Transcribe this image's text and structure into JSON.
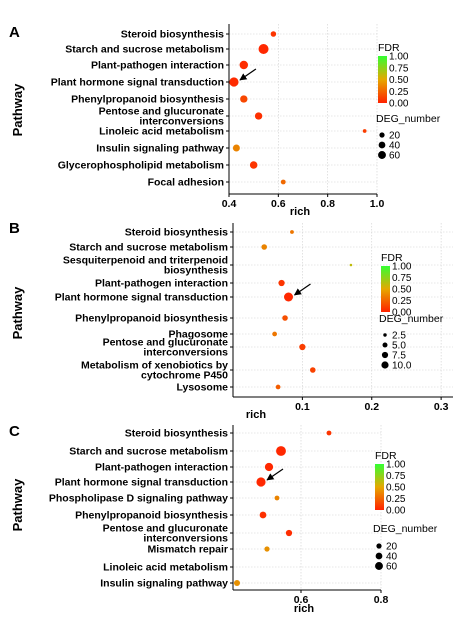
{
  "chart_data": [
    {
      "type": "scatter",
      "panel_label": "A",
      "xlabel": "rich",
      "ylabel": "Pathway",
      "xlim": [
        0.4,
        1.0
      ],
      "xticks": [
        "0.4",
        "0.6",
        "0.8",
        "1.0"
      ],
      "grid": true,
      "legend_position": "right",
      "size_legend_title": "DEG_number",
      "size_legend_values": [
        "20",
        "40",
        "60"
      ],
      "color_legend_title": "FDR",
      "color_legend_values": [
        "1.00",
        "0.75",
        "0.50",
        "0.25",
        "0.00"
      ],
      "categories": [
        "Steroid biosynthesis",
        "Starch and sucrose metabolism",
        "Plant-pathogen interaction",
        "Plant hormone signal transduction",
        "Phenylpropanoid biosynthesis",
        "Pentose and glucuronate interconversions",
        "Linoleic acid metabolism",
        "Insulin signaling pathway",
        "Glycerophospholipid metabolism",
        "Focal adhesion"
      ],
      "points": [
        {
          "pathway": "Steroid biosynthesis",
          "rich": 0.58,
          "deg_number": 12,
          "fdr": 0.05
        },
        {
          "pathway": "Starch and sucrose metabolism",
          "rich": 0.54,
          "deg_number": 62,
          "fdr": 0.0
        },
        {
          "pathway": "Plant-pathogen interaction",
          "rich": 0.46,
          "deg_number": 40,
          "fdr": 0.02
        },
        {
          "pathway": "Plant hormone signal transduction",
          "rich": 0.42,
          "deg_number": 50,
          "fdr": 0.01
        },
        {
          "pathway": "Phenylpropanoid biosynthesis",
          "rich": 0.46,
          "deg_number": 28,
          "fdr": 0.12
        },
        {
          "pathway": "Pentose and glucuronate interconversions",
          "rich": 0.52,
          "deg_number": 28,
          "fdr": 0.03
        },
        {
          "pathway": "Linoleic acid metabolism",
          "rich": 0.95,
          "deg_number": 3,
          "fdr": 0.08
        },
        {
          "pathway": "Insulin signaling pathway",
          "rich": 0.43,
          "deg_number": 24,
          "fdr": 0.35
        },
        {
          "pathway": "Glycerophospholipid metabolism",
          "rich": 0.5,
          "deg_number": 30,
          "fdr": 0.05
        },
        {
          "pathway": "Focal adhesion",
          "rich": 0.62,
          "deg_number": 8,
          "fdr": 0.25
        }
      ],
      "arrow_target": "Plant hormone signal transduction"
    },
    {
      "type": "scatter",
      "panel_label": "B",
      "xlabel": "rich",
      "ylabel": "Pathway",
      "xlim": [
        0.0,
        0.32
      ],
      "xticks": [
        "0.1",
        "0.2",
        "0.3"
      ],
      "grid": true,
      "legend_position": "right",
      "size_legend_title": "DEG_number",
      "size_legend_values": [
        "2.5",
        "5.0",
        "7.5",
        "10.0"
      ],
      "color_legend_title": "FDR",
      "color_legend_values": [
        "1.00",
        "0.75",
        "0.50",
        "0.25",
        "0.00"
      ],
      "categories": [
        "Steroid biosynthesis",
        "Starch and sucrose metabolism",
        "Sesquiterpenoid and triterpenoid biosynthesis",
        "Plant-pathogen interaction",
        "Plant hormone signal transduction",
        "Phenylpropanoid biosynthesis",
        "Phagosome",
        "Pentose and glucuronate interconversions",
        "Metabolism of xenobiotics by cytochrome P450",
        "Lysosome"
      ],
      "points": [
        {
          "pathway": "Steroid biosynthesis",
          "rich": 0.085,
          "deg_number": 2,
          "fdr": 0.3
        },
        {
          "pathway": "Starch and sucrose metabolism",
          "rich": 0.045,
          "deg_number": 4,
          "fdr": 0.35
        },
        {
          "pathway": "Sesquiterpenoid and triterpenoid biosynthesis",
          "rich": 0.17,
          "deg_number": 1,
          "fdr": 0.6
        },
        {
          "pathway": "Plant-pathogen interaction",
          "rich": 0.07,
          "deg_number": 5,
          "fdr": 0.05
        },
        {
          "pathway": "Plant hormone signal transduction",
          "rich": 0.08,
          "deg_number": 10,
          "fdr": 0.0
        },
        {
          "pathway": "Phenylpropanoid biosynthesis",
          "rich": 0.075,
          "deg_number": 4,
          "fdr": 0.15
        },
        {
          "pathway": "Phagosome",
          "rich": 0.06,
          "deg_number": 3,
          "fdr": 0.3
        },
        {
          "pathway": "Pentose and glucuronate interconversions",
          "rich": 0.1,
          "deg_number": 5,
          "fdr": 0.08
        },
        {
          "pathway": "Metabolism of xenobiotics by cytochrome P450",
          "rich": 0.115,
          "deg_number": 4,
          "fdr": 0.1
        },
        {
          "pathway": "Lysosome",
          "rich": 0.065,
          "deg_number": 3,
          "fdr": 0.2
        }
      ],
      "arrow_target": "Plant hormone signal transduction"
    },
    {
      "type": "scatter",
      "panel_label": "C",
      "xlabel": "rich",
      "ylabel": "Pathway",
      "xlim": [
        0.43,
        0.8
      ],
      "xticks": [
        "0.6",
        "0.8"
      ],
      "grid": true,
      "legend_position": "right",
      "size_legend_title": "DEG_number",
      "size_legend_values": [
        "20",
        "40",
        "60"
      ],
      "color_legend_title": "FDR",
      "color_legend_values": [
        "1.00",
        "0.75",
        "0.50",
        "0.25",
        "0.00"
      ],
      "categories": [
        "Steroid biosynthesis",
        "Starch and sucrose metabolism",
        "Plant-pathogen interaction",
        "Plant hormone signal transduction",
        "Phospholipase D signaling pathway",
        "Phenylpropanoid biosynthesis",
        "Pentose and glucuronate interconversions",
        "Mismatch repair",
        "Linoleic acid metabolism",
        "Insulin signaling pathway"
      ],
      "points": [
        {
          "pathway": "Steroid biosynthesis",
          "rich": 0.67,
          "deg_number": 8,
          "fdr": 0.05
        },
        {
          "pathway": "Starch and sucrose metabolism",
          "rich": 0.55,
          "deg_number": 60,
          "fdr": 0.0
        },
        {
          "pathway": "Plant-pathogen interaction",
          "rich": 0.52,
          "deg_number": 38,
          "fdr": 0.0
        },
        {
          "pathway": "Plant hormone signal transduction",
          "rich": 0.5,
          "deg_number": 50,
          "fdr": 0.0
        },
        {
          "pathway": "Phospholipase D signaling pathway",
          "rich": 0.54,
          "deg_number": 8,
          "fdr": 0.35
        },
        {
          "pathway": "Phenylpropanoid biosynthesis",
          "rich": 0.505,
          "deg_number": 22,
          "fdr": 0.03
        },
        {
          "pathway": "Pentose and glucuronate interconversions",
          "rich": 0.57,
          "deg_number": 18,
          "fdr": 0.02
        },
        {
          "pathway": "Mismatch repair",
          "rich": 0.515,
          "deg_number": 10,
          "fdr": 0.4
        },
        {
          "pathway": "Insulin signaling pathway",
          "rich": 0.44,
          "deg_number": 16,
          "fdr": 0.4
        }
      ],
      "arrow_target": "Plant hormone signal transduction"
    }
  ]
}
